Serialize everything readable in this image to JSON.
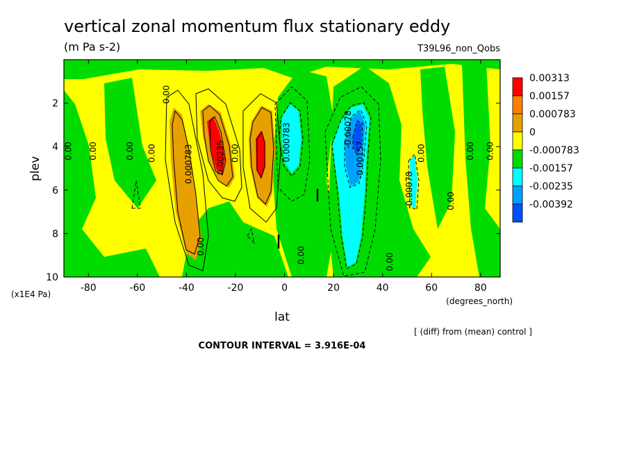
{
  "chart_data": {
    "type": "heatmap",
    "title": "vertical zonal momentum flux stationary eddy",
    "units": "(m Pa s-2)",
    "run_label": "T39L96_non_Qobs",
    "xlabel": "lat",
    "xunits": "(degrees_north)",
    "ylabel": "plev",
    "yunits": "(x1E4 Pa)",
    "xlim": [
      -90,
      88
    ],
    "ylim": [
      10,
      0
    ],
    "x_ticks": [
      -80,
      -60,
      -40,
      -20,
      0,
      20,
      40,
      60,
      80
    ],
    "y_ticks": [
      2,
      4,
      6,
      8,
      10
    ],
    "note": "[ (diff) from (mean) control ]",
    "contour_interval": "CONTOUR INTERVAL = 3.916E-04",
    "legend": {
      "placement": "right",
      "entries": [
        {
          "label": "0.00313",
          "color": "#ff0000"
        },
        {
          "label": "0.00157",
          "color": "#ff7f00"
        },
        {
          "label": "0.000783",
          "color": "#e6a000"
        },
        {
          "label": "0",
          "color": "#ffff00"
        },
        {
          "label": "-0.000783",
          "color": "#00dc00"
        },
        {
          "label": "-0.00157",
          "color": "#00ffff"
        },
        {
          "label": "-0.00235",
          "color": "#00a0ff"
        },
        {
          "label": "-0.00392",
          "color": "#0050ff"
        }
      ]
    },
    "features": [
      {
        "lat": -40,
        "plev": 4.8,
        "value": 0.0011,
        "label": "0.000783"
      },
      {
        "lat": -28,
        "plev": 4.5,
        "value": 0.0024,
        "label": "0.00235"
      },
      {
        "lat": -10,
        "plev": 4.2,
        "value": 0.0024,
        "label": "0.000783"
      },
      {
        "lat": 5,
        "plev": 4.2,
        "value": -0.001
      },
      {
        "lat": 30,
        "plev": 4.0,
        "value": -0.0039,
        "label": "-0.00078"
      },
      {
        "lat": 50,
        "plev": 5.5,
        "value": -0.0009,
        "label": "-0.00078"
      }
    ],
    "contour_labels": [
      {
        "text": "0.00",
        "lat": -87,
        "plev": 4.2
      },
      {
        "text": "0.00",
        "lat": -77,
        "plev": 4.2
      },
      {
        "text": "0.00",
        "lat": -62,
        "plev": 4.2
      },
      {
        "text": "0.00",
        "lat": -53,
        "plev": 4.3
      },
      {
        "text": "0.00",
        "lat": -47,
        "plev": 1.6
      },
      {
        "text": "0.000783",
        "lat": -38,
        "plev": 4.8
      },
      {
        "text": "0.00235",
        "lat": -25,
        "plev": 4.5
      },
      {
        "text": "0.00",
        "lat": -19,
        "plev": 4.3
      },
      {
        "text": "0.000783",
        "lat": 2,
        "plev": 3.8
      },
      {
        "text": "0.00",
        "lat": -33,
        "plev": 8.6
      },
      {
        "text": "0.00",
        "lat": 8,
        "plev": 9.0
      },
      {
        "text": "-0.00078",
        "lat": 27,
        "plev": 3.2
      },
      {
        "text": "-0.00157",
        "lat": 32,
        "plev": 4.6
      },
      {
        "text": "-0.00078",
        "lat": 52,
        "plev": 6.0
      },
      {
        "text": "0.00",
        "lat": 57,
        "plev": 4.3
      },
      {
        "text": "0.00",
        "lat": 69,
        "plev": 6.5
      },
      {
        "text": "0.00",
        "lat": 77,
        "plev": 4.2
      },
      {
        "text": "0.00",
        "lat": 85,
        "plev": 4.2
      },
      {
        "text": "0.00",
        "lat": 44,
        "plev": 9.3
      }
    ]
  }
}
